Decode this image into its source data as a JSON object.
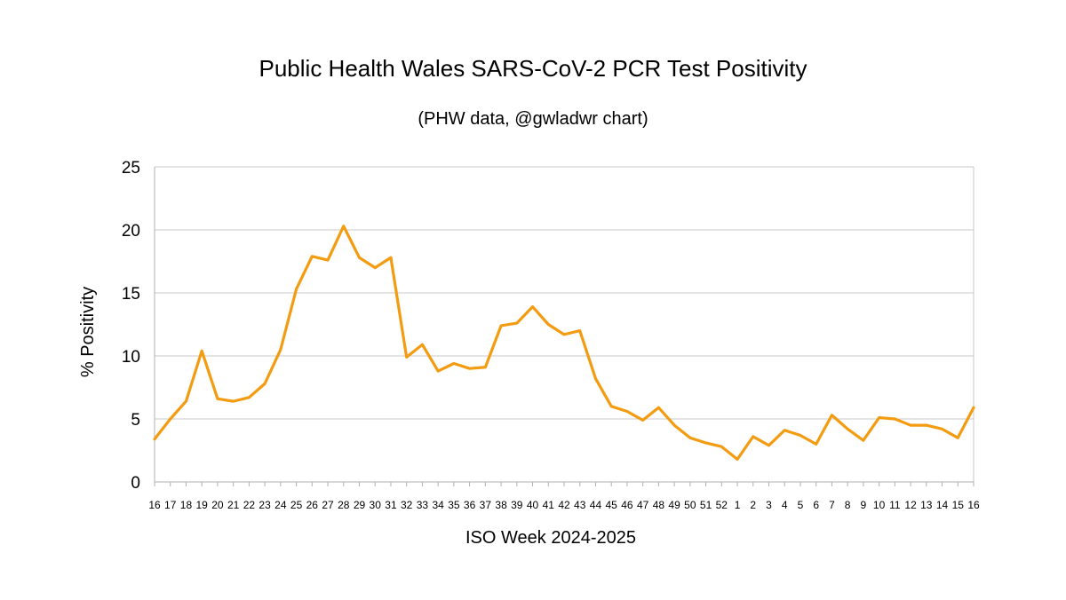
{
  "chart_data": {
    "type": "line",
    "title": "Public Health Wales SARS-CoV-2 PCR Test Positivity",
    "subtitle": "(PHW data, @gwladwr chart)",
    "xlabel": "ISO Week 2024-2025",
    "ylabel": "% Positivity",
    "ylim": [
      0,
      25
    ],
    "yticks": [
      0,
      5,
      10,
      15,
      20,
      25
    ],
    "grid": true,
    "legend": "none",
    "line_color": "#f39c12",
    "categories": [
      "16",
      "17",
      "18",
      "19",
      "20",
      "21",
      "22",
      "23",
      "24",
      "25",
      "26",
      "27",
      "28",
      "29",
      "30",
      "31",
      "32",
      "33",
      "34",
      "35",
      "36",
      "37",
      "38",
      "39",
      "40",
      "41",
      "42",
      "43",
      "44",
      "45",
      "46",
      "47",
      "48",
      "49",
      "50",
      "51",
      "52",
      "1",
      "2",
      "3",
      "4",
      "5",
      "6",
      "7",
      "8",
      "9",
      "10",
      "11",
      "12",
      "13",
      "14",
      "15",
      "16"
    ],
    "series": [
      {
        "name": "% Positivity",
        "values": [
          3.4,
          5.0,
          6.4,
          10.4,
          6.6,
          6.4,
          6.7,
          7.8,
          10.5,
          15.3,
          17.9,
          17.6,
          20.3,
          17.8,
          17.0,
          17.8,
          9.9,
          10.9,
          8.8,
          9.4,
          9.0,
          9.1,
          12.4,
          12.6,
          13.9,
          12.5,
          11.7,
          12.0,
          8.2,
          6.0,
          5.6,
          4.9,
          5.9,
          4.5,
          3.5,
          3.1,
          2.8,
          1.8,
          3.6,
          2.9,
          4.1,
          3.7,
          3.0,
          5.3,
          4.2,
          3.3,
          5.1,
          5.0,
          4.5,
          4.5,
          4.2,
          3.5,
          5.9
        ]
      }
    ]
  },
  "colors": {
    "line": "#f39c12",
    "grid": "#c8c8c8",
    "axis": "#b0b0b0"
  }
}
